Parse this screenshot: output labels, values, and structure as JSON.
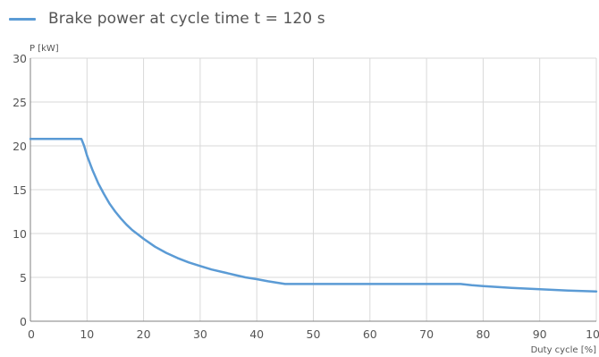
{
  "legend": {
    "label": "Brake power at cycle time t = 120 s"
  },
  "colors": {
    "series": "#5b9bd5",
    "grid": "#d9d9d9",
    "axis": "#808080"
  },
  "chart_data": {
    "type": "line",
    "title": "",
    "xlabel": "Duty cycle [%]",
    "ylabel": "P [kW]",
    "xlim": [
      0,
      100
    ],
    "ylim": [
      0,
      30
    ],
    "x_ticks": [
      "0",
      "10",
      "20",
      "30",
      "40",
      "50",
      "60",
      "70",
      "80",
      "90",
      "100"
    ],
    "y_ticks": [
      "0",
      "5",
      "10",
      "15",
      "20",
      "25",
      "30"
    ],
    "grid": true,
    "legend_position": "top-left",
    "series": [
      {
        "name": "Brake power at cycle time t = 120 s",
        "x": [
          0,
          9,
          9.5,
          10,
          11,
          12,
          13,
          14,
          15,
          16,
          17,
          18,
          19,
          20,
          22,
          24,
          26,
          28,
          30,
          32,
          34,
          36,
          38,
          40,
          42,
          44,
          45,
          50,
          60,
          70,
          75,
          76,
          78,
          80,
          85,
          90,
          95,
          100
        ],
        "y": [
          20.8,
          20.8,
          20.0,
          18.9,
          17.2,
          15.7,
          14.5,
          13.4,
          12.5,
          11.7,
          11.0,
          10.4,
          9.9,
          9.4,
          8.5,
          7.8,
          7.2,
          6.7,
          6.3,
          5.9,
          5.6,
          5.3,
          5.0,
          4.8,
          4.55,
          4.35,
          4.25,
          4.25,
          4.25,
          4.25,
          4.25,
          4.25,
          4.1,
          4.0,
          3.8,
          3.65,
          3.5,
          3.4
        ]
      }
    ]
  }
}
